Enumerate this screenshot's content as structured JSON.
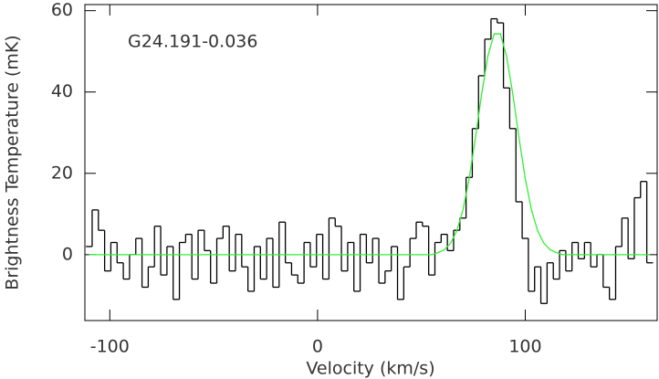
{
  "chart_data": {
    "type": "line",
    "annotation": "G24.191-0.036",
    "xlabel": "Velocity (km/s)",
    "ylabel": "Brightness Temperature (mK)",
    "xlim": [
      -112,
      163.5
    ],
    "ylim": [
      -16.2,
      61.5
    ],
    "xticks": [
      -100,
      0,
      100
    ],
    "yticks": [
      0,
      20,
      40,
      60
    ],
    "x": [
      -110,
      -107,
      -104,
      -101,
      -98,
      -95,
      -92,
      -89,
      -86,
      -83,
      -80,
      -77,
      -74,
      -71,
      -68,
      -65,
      -62,
      -59,
      -56,
      -53,
      -50,
      -47,
      -44,
      -41,
      -38,
      -35,
      -32,
      -29,
      -26,
      -23,
      -20,
      -17,
      -14,
      -11,
      -8,
      -5,
      -2,
      1,
      4,
      7,
      10,
      13,
      16,
      19,
      22,
      25,
      28,
      31,
      34,
      37,
      40,
      43,
      46,
      49,
      52,
      55,
      58,
      61,
      64,
      67,
      70,
      73,
      76,
      79,
      82,
      85,
      88,
      91,
      94,
      97,
      100,
      103,
      106,
      109,
      112,
      115,
      118,
      121,
      124,
      127,
      130,
      133,
      136,
      139,
      142,
      145,
      148,
      151,
      154,
      157,
      160
    ],
    "series": [
      {
        "color": "#000000",
        "drawstyle": "steps-mid",
        "values": [
          2,
          11,
          6,
          -4,
          3,
          -2,
          -6,
          0,
          4,
          -8,
          -3,
          7,
          -5,
          2,
          -11,
          3,
          5,
          -6,
          6,
          1,
          -7,
          4,
          7,
          -4,
          5,
          -3,
          -9,
          2,
          -6,
          4,
          -8,
          8,
          -2,
          -5,
          -7,
          3,
          -3,
          5,
          -6,
          9,
          7,
          -4,
          3,
          -9,
          5,
          -2,
          4,
          -7,
          -4,
          2,
          -11,
          -3,
          4,
          8,
          7,
          -5,
          3,
          5,
          1,
          6,
          9,
          19,
          31,
          44,
          53,
          58,
          57,
          41,
          31,
          13,
          4,
          -9,
          -3,
          -12,
          -2,
          -6,
          1,
          -4,
          3,
          -1,
          3,
          -3,
          0,
          -8,
          -11,
          2,
          9,
          -1,
          14,
          18,
          -2
        ]
      },
      {
        "color": "#33ee33",
        "drawstyle": "default",
        "values": [
          0,
          0,
          0,
          0,
          0,
          0,
          0,
          0,
          0,
          0,
          0,
          0,
          0,
          0,
          0,
          0,
          0,
          0,
          0,
          0,
          0,
          0,
          0,
          0,
          0,
          0,
          0,
          0,
          0,
          0,
          0,
          0,
          0,
          0,
          0,
          0,
          0,
          0,
          0,
          0,
          0,
          0,
          0,
          0,
          0,
          0,
          0,
          0,
          0,
          0,
          0,
          0,
          0,
          0,
          0,
          0,
          0.5,
          1.2,
          2.8,
          5.8,
          11,
          18.7,
          28.7,
          39.5,
          48.8,
          54.3,
          54.3,
          48.8,
          39.5,
          28.7,
          18.7,
          11,
          5.8,
          2.8,
          1.2,
          0.5,
          0,
          0,
          0,
          0,
          0,
          0,
          0,
          0,
          0,
          0,
          0,
          0,
          0,
          0,
          0
        ]
      }
    ]
  }
}
